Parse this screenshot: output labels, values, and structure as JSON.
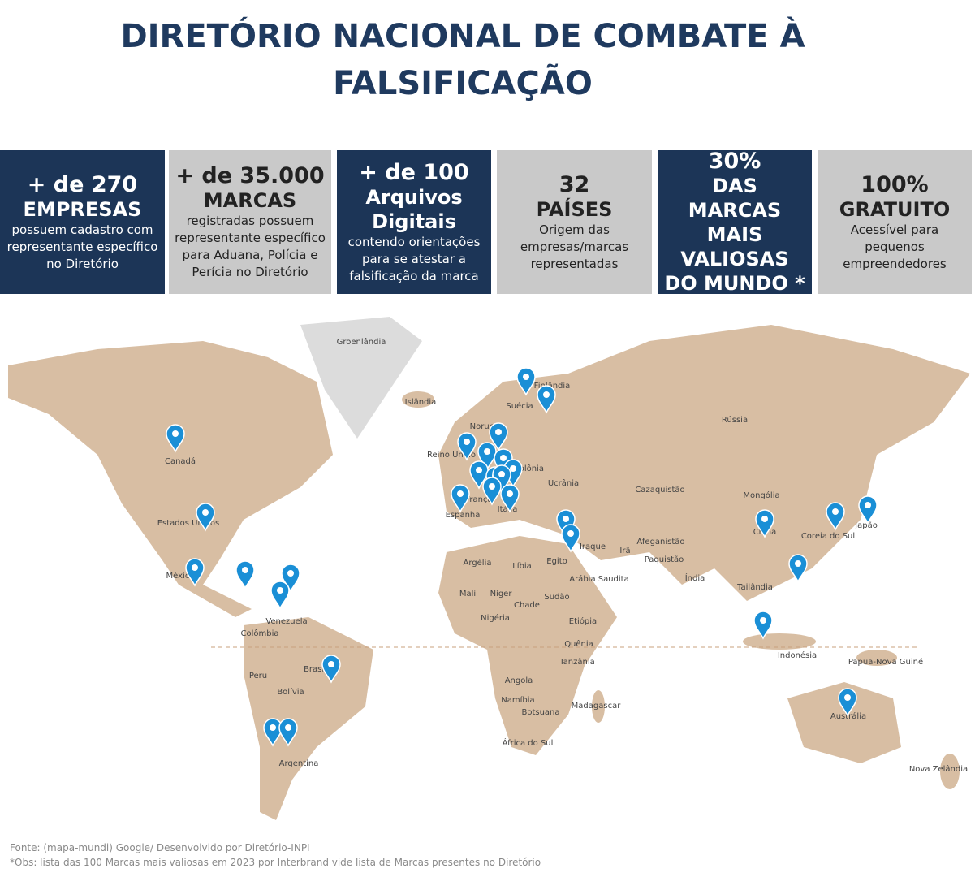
{
  "header": {
    "title_line1": "DIRETÓRIO NACIONAL DE COMBATE À",
    "title_line2": "FALSIFICAÇÃO"
  },
  "stats": [
    {
      "headline": "+ de 270",
      "label": "EMPRESAS",
      "description": "possuem cadastro com representante específico no Diretório"
    },
    {
      "headline": "+ de 35.000",
      "label": "MARCAS",
      "description": "registradas possuem representante específico para Aduana, Polícia e Perícia no Diretório"
    },
    {
      "headline": "+ de 100",
      "label": "Arquivos Digitais",
      "description": "contendo orientações para se atestar a falsificação da marca"
    },
    {
      "headline": "32",
      "label": "PAÍSES",
      "description": "Origem das empresas/marcas representadas"
    },
    {
      "headline": "30%",
      "label": "DAS MARCAS MAIS VALIOSAS DO MUNDO *"
    },
    {
      "headline": "100%",
      "label": "GRATUITO",
      "description": "Acessível para pequenos empreendedores"
    }
  ],
  "map": {
    "labels": [
      "Groenlândia",
      "Islândia",
      "Canadá",
      "Estados Unidos",
      "México",
      "Venezuela",
      "Colômbia",
      "Peru",
      "Brasil",
      "Bolívia",
      "Argentina",
      "Reino Unido",
      "Espanha",
      "França",
      "Itália",
      "Noruega",
      "Suécia",
      "Finlândia",
      "Polônia",
      "Ucrânia",
      "Rússia",
      "Cazaquistão",
      "Mongólia",
      "China",
      "Coreia do Sul",
      "Japão",
      "Afeganistão",
      "Paquistão",
      "Irã",
      "Iraque",
      "Índia",
      "Tailândia",
      "Indonésia",
      "Papua-Nova Guiné",
      "Austrália",
      "Nova Zelândia",
      "Argélia",
      "Líbia",
      "Egito",
      "Arábia Saudita",
      "Mali",
      "Níger",
      "Chade",
      "Sudão",
      "Nigéria",
      "Etiópia",
      "Quênia",
      "Tanzânia",
      "Angola",
      "Namíbia",
      "Botsuana",
      "Madagascar",
      "África do Sul"
    ]
  },
  "footer": {
    "source": "Fonte: (mapa-mundi) Google/ Desenvolvido por Diretório-INPI",
    "note": "*Obs: lista das 100 Marcas mais valiosas em 2023 por Interbrand vide lista de Marcas presentes no Diretório"
  }
}
